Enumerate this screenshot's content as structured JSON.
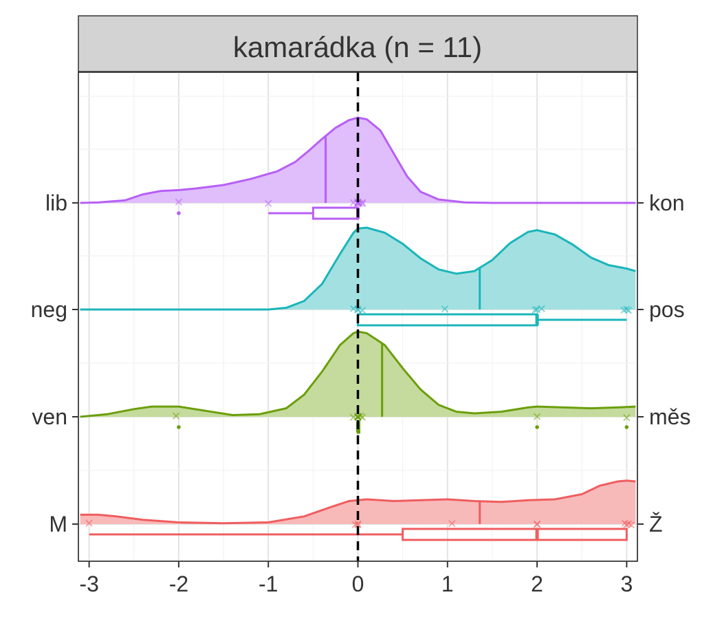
{
  "chart_data": {
    "type": "ridgeline-density",
    "panel_title": "kamarádka (n = 11)",
    "x_ticks": [
      -3,
      -2,
      -1,
      0,
      1,
      2,
      3
    ],
    "x_tick_labels": [
      "-3",
      "-2",
      "-1",
      "0",
      "1",
      "2",
      "3"
    ],
    "xlim": [
      -3.12,
      3.12
    ],
    "reference_line_x": 0,
    "grid": true,
    "rows": [
      {
        "left_label": "lib",
        "right_label": "kon",
        "color": "#B75FF5",
        "fill": "#E0BDFB",
        "mean": -0.36,
        "points": [
          -2,
          -1,
          -0.05,
          0,
          0,
          0,
          0,
          0,
          0.02,
          0.05,
          0.05
        ],
        "box": {
          "whisker_low": -1,
          "q1": -0.5,
          "median": 0,
          "q3": 0,
          "whisker_high": 0
        },
        "outliers": [
          -2
        ],
        "density": [
          [
            -3.1,
            0.0
          ],
          [
            -2.9,
            0.005
          ],
          [
            -2.6,
            0.03
          ],
          [
            -2.4,
            0.1
          ],
          [
            -2.2,
            0.14
          ],
          [
            -2.0,
            0.15
          ],
          [
            -1.8,
            0.17
          ],
          [
            -1.5,
            0.21
          ],
          [
            -1.2,
            0.28
          ],
          [
            -0.9,
            0.37
          ],
          [
            -0.7,
            0.48
          ],
          [
            -0.55,
            0.61
          ],
          [
            -0.4,
            0.75
          ],
          [
            -0.25,
            0.88
          ],
          [
            -0.1,
            0.97
          ],
          [
            0.0,
            1.0
          ],
          [
            0.1,
            0.98
          ],
          [
            0.25,
            0.85
          ],
          [
            0.4,
            0.58
          ],
          [
            0.55,
            0.31
          ],
          [
            0.7,
            0.13
          ],
          [
            0.9,
            0.04
          ],
          [
            1.2,
            0.005
          ],
          [
            1.5,
            0.0
          ],
          [
            3.1,
            0.0
          ]
        ]
      },
      {
        "left_label": "neg",
        "right_label": "pos",
        "color": "#1AB5B9",
        "fill": "#A3E0E1",
        "mean": 1.36,
        "points": [
          -0.05,
          0,
          0,
          0.05,
          0.97,
          1.98,
          2.0,
          2.05,
          2.97,
          3.0,
          3.02
        ],
        "box": {
          "whisker_low": 0,
          "q1": 0,
          "median": 2,
          "q3": 2,
          "whisker_high": 3
        },
        "outliers": [],
        "density": [
          [
            -3.1,
            0.0
          ],
          [
            -1.0,
            0.0
          ],
          [
            -0.8,
            0.02
          ],
          [
            -0.6,
            0.1
          ],
          [
            -0.4,
            0.3
          ],
          [
            -0.2,
            0.65
          ],
          [
            -0.05,
            0.9
          ],
          [
            0.0,
            0.95
          ],
          [
            0.1,
            0.96
          ],
          [
            0.3,
            0.9
          ],
          [
            0.5,
            0.77
          ],
          [
            0.7,
            0.6
          ],
          [
            0.9,
            0.47
          ],
          [
            1.1,
            0.42
          ],
          [
            1.3,
            0.45
          ],
          [
            1.5,
            0.58
          ],
          [
            1.7,
            0.78
          ],
          [
            1.9,
            0.91
          ],
          [
            2.0,
            0.93
          ],
          [
            2.2,
            0.88
          ],
          [
            2.4,
            0.76
          ],
          [
            2.6,
            0.61
          ],
          [
            2.8,
            0.52
          ],
          [
            3.0,
            0.48
          ],
          [
            3.1,
            0.45
          ]
        ]
      },
      {
        "left_label": "ven",
        "right_label": "měs",
        "color": "#6B9E0A",
        "fill": "#C5DB9D",
        "mean": 0.27,
        "points": [
          -2.03,
          -0.05,
          0,
          0,
          0,
          0,
          0,
          0.03,
          0.05,
          2,
          3
        ],
        "box": {
          "whisker_low": 0,
          "q1": 0,
          "median": 0,
          "q3": 0,
          "whisker_high": 0
        },
        "outliers": [
          -2,
          2,
          3
        ],
        "density": [
          [
            -3.1,
            0.0
          ],
          [
            -2.8,
            0.03
          ],
          [
            -2.5,
            0.09
          ],
          [
            -2.3,
            0.12
          ],
          [
            -2.0,
            0.12
          ],
          [
            -1.7,
            0.07
          ],
          [
            -1.4,
            0.02
          ],
          [
            -1.1,
            0.03
          ],
          [
            -0.8,
            0.1
          ],
          [
            -0.6,
            0.26
          ],
          [
            -0.4,
            0.53
          ],
          [
            -0.2,
            0.84
          ],
          [
            -0.05,
            0.98
          ],
          [
            0.0,
            1.0
          ],
          [
            0.1,
            0.98
          ],
          [
            0.3,
            0.84
          ],
          [
            0.5,
            0.57
          ],
          [
            0.7,
            0.32
          ],
          [
            0.9,
            0.14
          ],
          [
            1.1,
            0.06
          ],
          [
            1.3,
            0.04
          ],
          [
            1.6,
            0.06
          ],
          [
            1.9,
            0.11
          ],
          [
            2.0,
            0.12
          ],
          [
            2.3,
            0.11
          ],
          [
            2.6,
            0.1
          ],
          [
            2.9,
            0.11
          ],
          [
            3.1,
            0.12
          ]
        ]
      },
      {
        "left_label": "M",
        "right_label": "Ž",
        "color": "#EF5D5F",
        "fill": "#F8B9B9",
        "mean": 1.36,
        "points": [
          -3,
          -0.03,
          0,
          0,
          1.05,
          2,
          2,
          2.98,
          3,
          3.02,
          3.05
        ],
        "box": {
          "whisker_low": -3,
          "q1": 0.5,
          "median": 2,
          "q3": 3,
          "whisker_high": 3
        },
        "outliers": [],
        "density": [
          [
            -3.1,
            0.11
          ],
          [
            -2.9,
            0.11
          ],
          [
            -2.7,
            0.09
          ],
          [
            -2.4,
            0.05
          ],
          [
            -2.0,
            0.02
          ],
          [
            -1.5,
            0.01
          ],
          [
            -1.0,
            0.02
          ],
          [
            -0.6,
            0.09
          ],
          [
            -0.3,
            0.2
          ],
          [
            -0.1,
            0.27
          ],
          [
            0.1,
            0.29
          ],
          [
            0.4,
            0.27
          ],
          [
            0.7,
            0.28
          ],
          [
            1.0,
            0.29
          ],
          [
            1.3,
            0.27
          ],
          [
            1.6,
            0.26
          ],
          [
            1.9,
            0.28
          ],
          [
            2.2,
            0.29
          ],
          [
            2.5,
            0.35
          ],
          [
            2.7,
            0.45
          ],
          [
            2.9,
            0.5
          ],
          [
            3.0,
            0.51
          ],
          [
            3.1,
            0.5
          ]
        ]
      }
    ]
  }
}
